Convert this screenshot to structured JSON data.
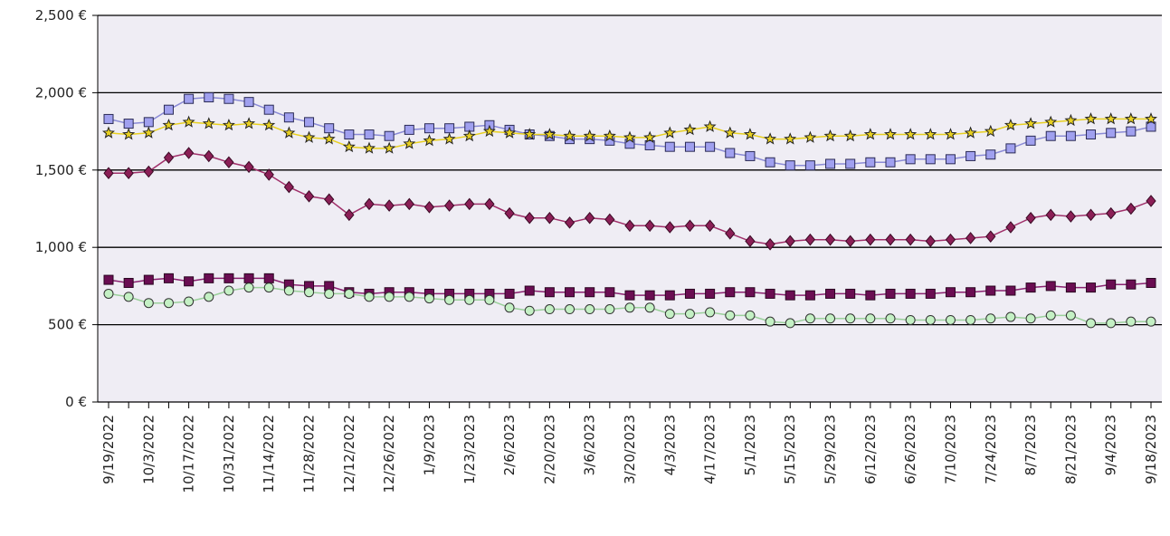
{
  "chart_data": {
    "type": "line",
    "title": "",
    "xlabel": "",
    "ylabel": "",
    "ylim": [
      0,
      2500
    ],
    "yticks": [
      "0 €",
      "500 €",
      "1,000 €",
      "1,500 €",
      "2,000 €",
      "2,500 €"
    ],
    "ytick_values": [
      0,
      500,
      1000,
      1500,
      2000,
      2500
    ],
    "x_tick_labels": [
      "9/19/2022",
      "10/3/2022",
      "10/17/2022",
      "10/31/2022",
      "11/14/2022",
      "11/28/2022",
      "12/12/2022",
      "12/26/2022",
      "1/9/2023",
      "1/23/2023",
      "2/6/2023",
      "2/20/2023",
      "3/6/2023",
      "3/20/2023",
      "4/3/2023",
      "4/17/2023",
      "5/1/2023",
      "5/15/2023",
      "5/29/2023",
      "6/12/2023",
      "6/26/2023",
      "7/10/2023",
      "7/24/2023",
      "8/7/2023",
      "8/21/2023",
      "9/4/2023",
      "9/18/2023"
    ],
    "x_count": 53,
    "grid": "horizontal",
    "colors": {
      "plot_bg": "#efedf4",
      "gridline": "#000000",
      "blue_square_fill": "#a0a0ef",
      "star_line": "#e8d020",
      "diamond_fill": "#8b1f56",
      "dark_square_fill": "#6a0d52",
      "circle_fill": "#c4f0c4"
    },
    "series": [
      {
        "marker": "square-light",
        "values": [
          1830,
          1800,
          1810,
          1890,
          1960,
          1970,
          1960,
          1940,
          1890,
          1840,
          1810,
          1770,
          1730,
          1730,
          1720,
          1760,
          1770,
          1770,
          1780,
          1790,
          1760,
          1730,
          1720,
          1700,
          1700,
          1690,
          1670,
          1660,
          1650,
          1650,
          1650,
          1610,
          1590,
          1550,
          1530,
          1530,
          1540,
          1540,
          1550,
          1550,
          1570,
          1570,
          1570,
          1590,
          1600,
          1640,
          1690,
          1720,
          1720,
          1730,
          1740,
          1750,
          1780
        ]
      },
      {
        "marker": "star",
        "values": [
          1740,
          1730,
          1740,
          1790,
          1810,
          1800,
          1790,
          1800,
          1790,
          1740,
          1710,
          1700,
          1650,
          1640,
          1640,
          1670,
          1690,
          1700,
          1720,
          1750,
          1740,
          1730,
          1730,
          1720,
          1720,
          1720,
          1710,
          1710,
          1740,
          1760,
          1780,
          1740,
          1730,
          1700,
          1700,
          1710,
          1720,
          1720,
          1730,
          1730,
          1730,
          1730,
          1730,
          1740,
          1750,
          1790,
          1800,
          1810,
          1820,
          1830,
          1830,
          1830,
          1830
        ]
      },
      {
        "marker": "diamond",
        "values": [
          1480,
          1480,
          1490,
          1580,
          1610,
          1590,
          1550,
          1520,
          1470,
          1390,
          1330,
          1310,
          1210,
          1280,
          1270,
          1280,
          1260,
          1270,
          1280,
          1280,
          1220,
          1190,
          1190,
          1160,
          1190,
          1180,
          1140,
          1140,
          1130,
          1140,
          1140,
          1090,
          1040,
          1020,
          1040,
          1050,
          1050,
          1040,
          1050,
          1050,
          1050,
          1040,
          1050,
          1060,
          1070,
          1130,
          1190,
          1210,
          1200,
          1210,
          1220,
          1250,
          1300
        ]
      },
      {
        "marker": "square-dark",
        "values": [
          790,
          770,
          790,
          800,
          780,
          800,
          800,
          800,
          800,
          760,
          750,
          750,
          710,
          700,
          710,
          710,
          700,
          700,
          700,
          700,
          700,
          720,
          710,
          710,
          710,
          710,
          690,
          690,
          690,
          700,
          700,
          710,
          710,
          700,
          690,
          690,
          700,
          700,
          690,
          700,
          700,
          700,
          710,
          710,
          720,
          720,
          740,
          750,
          740,
          740,
          760,
          760,
          770
        ]
      },
      {
        "marker": "circle",
        "values": [
          700,
          680,
          640,
          640,
          650,
          680,
          720,
          740,
          740,
          720,
          710,
          700,
          700,
          680,
          680,
          680,
          670,
          660,
          660,
          660,
          610,
          590,
          600,
          600,
          600,
          600,
          610,
          610,
          570,
          570,
          580,
          560,
          560,
          520,
          510,
          540,
          540,
          540,
          540,
          540,
          530,
          530,
          530,
          530,
          540,
          550,
          540,
          560,
          560,
          510,
          510,
          520,
          520
        ]
      }
    ]
  }
}
